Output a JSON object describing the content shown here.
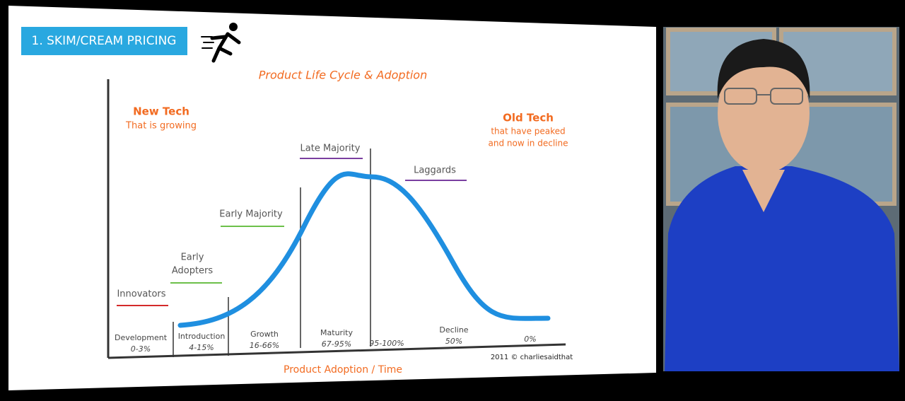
{
  "header": {
    "title": "1. SKIM/CREAM PRICING"
  },
  "diagram": {
    "title": "Product Life Cycle & Adoption",
    "new_tech": {
      "title": "New Tech",
      "subtitle": "That is growing"
    },
    "old_tech": {
      "title": "Old Tech",
      "lines": [
        "that have peaked",
        "and now in decline"
      ]
    },
    "adopter_groups": [
      {
        "lines": [
          "Innovators"
        ]
      },
      {
        "lines": [
          "Early",
          "Adopters"
        ]
      },
      {
        "lines": [
          "Early Majority"
        ]
      },
      {
        "lines": [
          "Late Majority"
        ]
      },
      {
        "lines": [
          "Laggards"
        ]
      }
    ],
    "stages": [
      {
        "name": "Development",
        "range": "0-3%"
      },
      {
        "name": "Introduction",
        "range": "4-15%"
      },
      {
        "name": "Growth",
        "range": "16-66%"
      },
      {
        "name": "Maturity",
        "range": "67-95%"
      },
      {
        "range": "95-100%"
      },
      {
        "name": "Decline",
        "range": "50%"
      },
      {
        "range": "0%"
      }
    ],
    "x_axis_label": "Product Adoption / Time",
    "credit": "2011 © charliesaidthat"
  }
}
